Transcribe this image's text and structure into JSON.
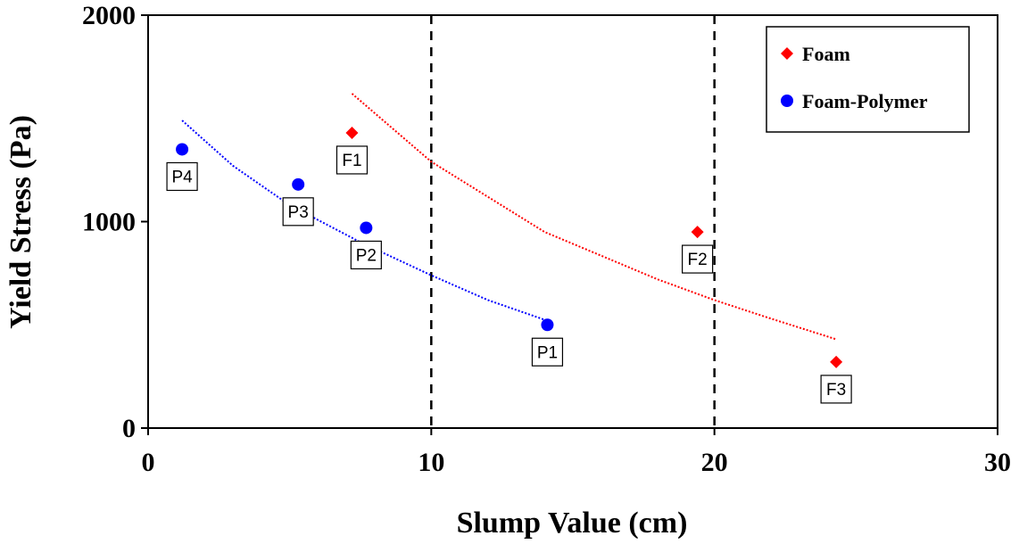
{
  "chart_data": {
    "type": "scatter",
    "title": "",
    "xlabel": "Slump Value (cm)",
    "ylabel": "Yield Stress (Pa)",
    "xlim": [
      0,
      30
    ],
    "ylim": [
      0,
      2000
    ],
    "xticks": [
      0,
      10,
      20,
      30
    ],
    "yticks": [
      0,
      1000,
      2000
    ],
    "grid": false,
    "legend_position": "top-right",
    "vertical_reference_lines": [
      10,
      20
    ],
    "series": [
      {
        "name": "Foam",
        "color": "#ff0000",
        "marker": "diamond",
        "points": [
          {
            "label": "F1",
            "x": 7.2,
            "y": 1430
          },
          {
            "label": "F2",
            "x": 19.4,
            "y": 950
          },
          {
            "label": "F3",
            "x": 24.3,
            "y": 320
          }
        ],
        "trendline": {
          "x": [
            7.2,
            10,
            14,
            18,
            20,
            22,
            24.3
          ],
          "y": [
            1620,
            1290,
            950,
            720,
            620,
            530,
            430
          ]
        }
      },
      {
        "name": "Foam-Polymer",
        "color": "#0000ff",
        "marker": "circle",
        "points": [
          {
            "label": "P4",
            "x": 1.2,
            "y": 1350
          },
          {
            "label": "P3",
            "x": 5.3,
            "y": 1180
          },
          {
            "label": "P2",
            "x": 7.7,
            "y": 970
          },
          {
            "label": "P1",
            "x": 14.1,
            "y": 500
          }
        ],
        "trendline": {
          "x": [
            1.2,
            3,
            5,
            7.5,
            10,
            12,
            14.1
          ],
          "y": [
            1490,
            1270,
            1080,
            900,
            740,
            620,
            520
          ]
        }
      }
    ]
  }
}
